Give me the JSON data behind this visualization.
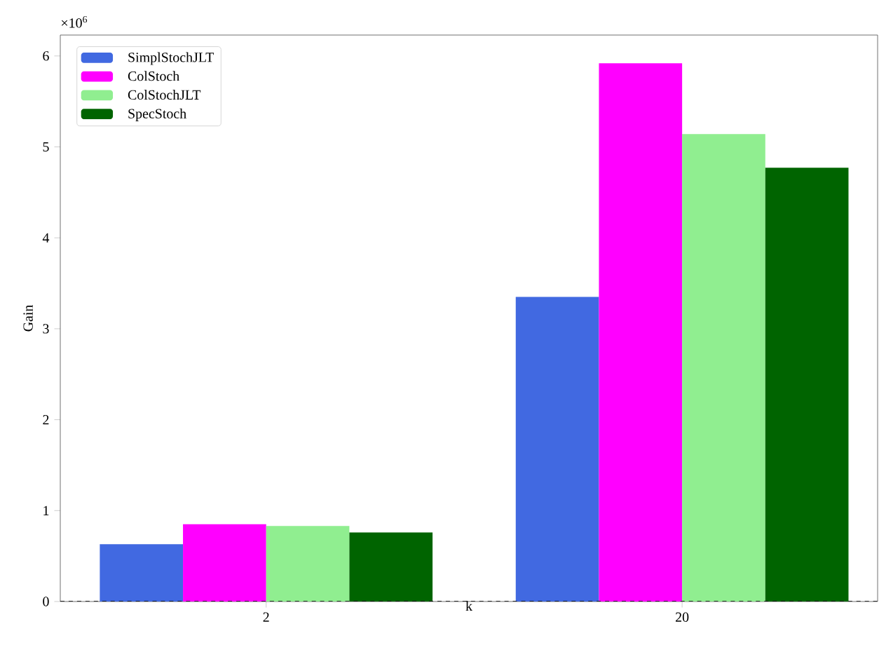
{
  "chart_data": {
    "type": "bar",
    "xlabel": "k",
    "ylabel": "Gain",
    "categories": [
      "2",
      "20"
    ],
    "series": [
      {
        "name": "SimplStochJLT",
        "color": "#4169e1",
        "values": [
          0.63,
          3.35
        ]
      },
      {
        "name": "ColStoch",
        "color": "#ff00ff",
        "values": [
          0.85,
          5.92
        ]
      },
      {
        "name": "ColStochJLT",
        "color": "#90ee90",
        "values": [
          0.83,
          5.14
        ]
      },
      {
        "name": "SpecStoch",
        "color": "#006400",
        "values": [
          0.76,
          4.77
        ]
      }
    ],
    "ylim": [
      0,
      6.23
    ],
    "yticks": [
      0,
      1,
      2,
      3,
      4,
      5,
      6
    ],
    "ref_lines": [
      {
        "axis": "y",
        "value": 0,
        "color": "#000000",
        "line_style": "dashed"
      }
    ],
    "annotations": [
      "×10$^{6}$"
    ],
    "legend": "top left",
    "grid": false
  }
}
